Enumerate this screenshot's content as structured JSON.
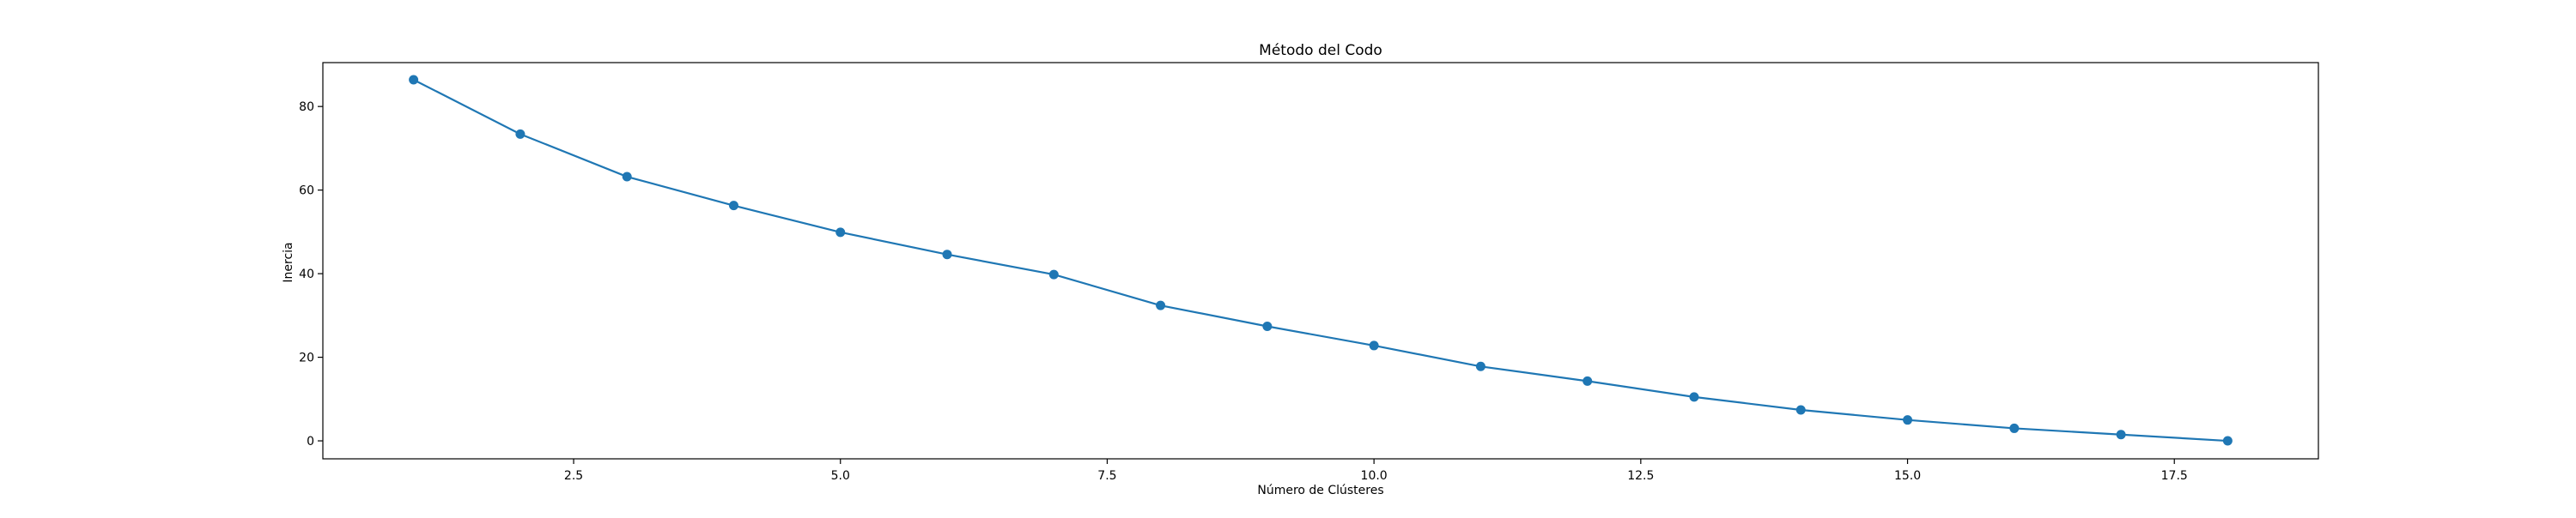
{
  "chart_data": {
    "type": "line",
    "title": "Método del Codo",
    "xlabel": "Número de Clústeres",
    "ylabel": "Inercia",
    "xlim": [
      0.15,
      18.85
    ],
    "ylim": [
      -4.3,
      90.5
    ],
    "xticks": [
      2.5,
      5.0,
      7.5,
      10.0,
      12.5,
      15.0,
      17.5
    ],
    "xtick_labels": [
      "2.5",
      "5.0",
      "7.5",
      "10.0",
      "12.5",
      "15.0",
      "17.5"
    ],
    "yticks": [
      0,
      20,
      40,
      60,
      80
    ],
    "ytick_labels": [
      "0",
      "20",
      "40",
      "60",
      "80"
    ],
    "grid": false,
    "legend": "none",
    "series": [
      {
        "color": "#1f77b4",
        "marker": "circle",
        "x": [
          1,
          2,
          3,
          4,
          5,
          6,
          7,
          8,
          9,
          10,
          11,
          12,
          13,
          14,
          15,
          16,
          17,
          18
        ],
        "y": [
          86.4,
          73.4,
          63.2,
          56.3,
          49.9,
          44.6,
          39.8,
          32.4,
          27.4,
          22.8,
          17.8,
          14.3,
          10.5,
          7.4,
          5.0,
          3.0,
          1.5,
          0.0
        ]
      }
    ]
  }
}
